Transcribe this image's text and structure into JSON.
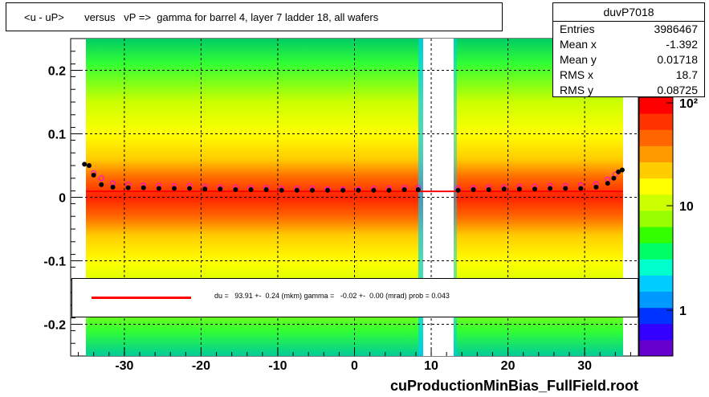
{
  "title": "<u - uP>       versus   vP =>  gamma for barrel 4, layer 7 ladder 18, all wafers",
  "stats": {
    "name": "duvP7018",
    "rows": [
      {
        "label": "Entries",
        "value": "3986467"
      },
      {
        "label": "Mean x",
        "value": "-1.392"
      },
      {
        "label": "Mean y",
        "value": "0.01718"
      },
      {
        "label": "RMS x",
        "value": "18.7"
      },
      {
        "label": "RMS y",
        "value": "0.08725"
      }
    ]
  },
  "legend": {
    "text": "du =   93.91 +-  0.24 (mkm) gamma =   -0.02 +-  0.00 (mrad) prob = 0.043",
    "line_color": "#ff0000"
  },
  "footer": "cuProductionMinBias_FullField.root",
  "chart_data": {
    "type": "heatmap",
    "title": "<u - uP>       versus   vP =>  gamma for barrel 4, layer 7 ladder 18, all wafers",
    "xlabel": "",
    "ylabel": "",
    "xlim": [
      -37,
      37
    ],
    "ylim": [
      -0.25,
      0.25
    ],
    "x_ticks": [
      -30,
      -20,
      -10,
      0,
      10,
      20,
      30
    ],
    "y_ticks": [
      -0.2,
      -0.1,
      0,
      0.1,
      0.2
    ],
    "x_tick_labels": [
      "-30",
      "-20",
      "-10",
      "0",
      "10",
      "20",
      "30"
    ],
    "y_tick_labels": [
      "-0.2",
      "-0.1",
      "0",
      "0.1",
      "0.2"
    ],
    "colorbar": {
      "scale": "log",
      "tick_labels": [
        "1",
        "10",
        "10²"
      ]
    },
    "grid": true,
    "occupied_x_ranges": [
      [
        -35.5,
        8.8
      ],
      [
        13.2,
        35.0
      ]
    ],
    "gap_x_range": [
      8.8,
      13.2
    ],
    "fit_line": {
      "slope": 0.0,
      "intercept": 0.0094,
      "color": "#ff0000"
    },
    "profile_black": [
      [
        -35.2,
        0.052
      ],
      [
        -34.6,
        0.05
      ],
      [
        -34.0,
        0.035
      ],
      [
        -33.0,
        0.02
      ],
      [
        -31.5,
        0.016
      ],
      [
        -29.5,
        0.015
      ],
      [
        -27.5,
        0.015
      ],
      [
        -25.5,
        0.014
      ],
      [
        -23.5,
        0.014
      ],
      [
        -21.5,
        0.014
      ],
      [
        -19.5,
        0.013
      ],
      [
        -17.5,
        0.013
      ],
      [
        -15.5,
        0.012
      ],
      [
        -13.5,
        0.012
      ],
      [
        -11.5,
        0.012
      ],
      [
        -9.5,
        0.011
      ],
      [
        -7.5,
        0.011
      ],
      [
        -5.5,
        0.011
      ],
      [
        -3.5,
        0.011
      ],
      [
        -1.5,
        0.011
      ],
      [
        0.5,
        0.011
      ],
      [
        2.5,
        0.011
      ],
      [
        4.5,
        0.011
      ],
      [
        6.5,
        0.012
      ],
      [
        8.3,
        0.012
      ],
      [
        13.5,
        0.011
      ],
      [
        15.5,
        0.012
      ],
      [
        17.5,
        0.012
      ],
      [
        19.5,
        0.013
      ],
      [
        21.5,
        0.013
      ],
      [
        23.5,
        0.013
      ],
      [
        25.5,
        0.014
      ],
      [
        27.5,
        0.014
      ],
      [
        29.5,
        0.014
      ],
      [
        31.5,
        0.016
      ],
      [
        33.0,
        0.022
      ],
      [
        33.8,
        0.03
      ],
      [
        34.4,
        0.04
      ],
      [
        34.9,
        0.043
      ]
    ],
    "profile_magenta": [
      [
        -34.0,
        0.038
      ],
      [
        -33.0,
        0.03
      ],
      [
        -31.5,
        0.022
      ],
      [
        -29.5,
        0.02
      ],
      [
        -27.5,
        0.019
      ],
      [
        -25.5,
        0.018
      ],
      [
        -23.5,
        0.018
      ],
      [
        -21.5,
        0.018
      ],
      [
        -19.5,
        0.017
      ],
      [
        -17.5,
        0.016
      ],
      [
        -15.5,
        0.016
      ],
      [
        -13.5,
        0.015
      ],
      [
        -11.5,
        0.015
      ],
      [
        -9.5,
        0.014
      ],
      [
        -7.5,
        0.014
      ],
      [
        -5.5,
        0.014
      ],
      [
        -3.5,
        0.013
      ],
      [
        -1.5,
        0.013
      ],
      [
        0.5,
        0.013
      ],
      [
        2.5,
        0.014
      ],
      [
        4.5,
        0.014
      ],
      [
        6.5,
        0.015
      ],
      [
        8.3,
        0.015
      ],
      [
        13.5,
        0.014
      ],
      [
        15.5,
        0.015
      ],
      [
        17.5,
        0.016
      ],
      [
        19.5,
        0.016
      ],
      [
        21.5,
        0.017
      ],
      [
        23.5,
        0.017
      ],
      [
        25.5,
        0.018
      ],
      [
        27.5,
        0.018
      ],
      [
        29.5,
        0.019
      ],
      [
        31.5,
        0.021
      ],
      [
        33.0,
        0.028
      ],
      [
        34.0,
        0.036
      ]
    ],
    "colors": {
      "black_markers": "#000000",
      "magenta_markers": "#ff00ff",
      "fit_line": "#ff0000",
      "palette": [
        "#6600cc",
        "#3300ff",
        "#0033ff",
        "#0099ff",
        "#00ccff",
        "#00ffcc",
        "#00ff66",
        "#33ff00",
        "#99ff00",
        "#ccff00",
        "#ffff00",
        "#ffcc00",
        "#ff9900",
        "#ff6600",
        "#ff3300",
        "#ff0000"
      ]
    }
  }
}
